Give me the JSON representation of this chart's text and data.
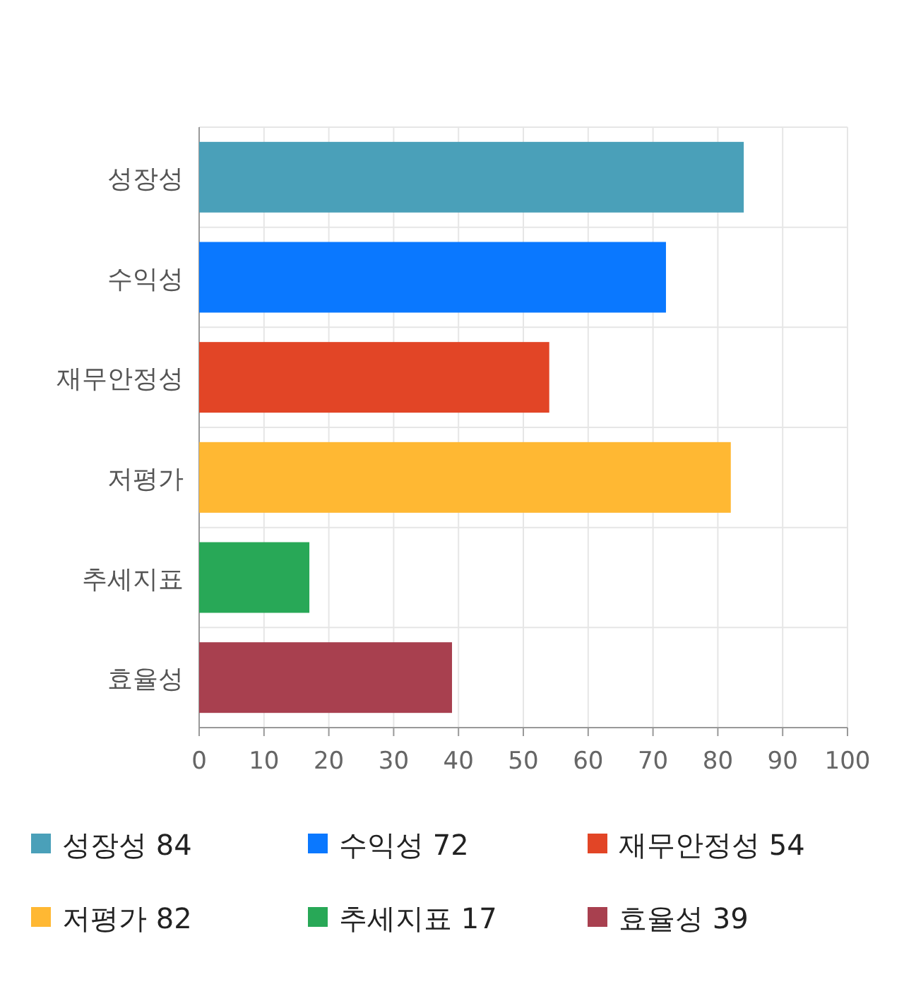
{
  "chart_data": {
    "type": "bar",
    "orientation": "horizontal",
    "stacked": true,
    "categories": [
      "성장성",
      "수익성",
      "재무안정성",
      "저평가",
      "추세지표",
      "효율성"
    ],
    "series": [
      {
        "name": "성장성 84",
        "color": "#4aa0b9",
        "values": [
          84,
          null,
          null,
          null,
          null,
          null
        ]
      },
      {
        "name": "수익성 72",
        "color": "#0a78ff",
        "values": [
          null,
          72,
          null,
          null,
          null,
          null
        ]
      },
      {
        "name": "재무안정성 54",
        "color": "#e24526",
        "values": [
          null,
          null,
          54,
          null,
          null,
          null
        ]
      },
      {
        "name": "저평가 82",
        "color": "#ffb833",
        "values": [
          null,
          null,
          null,
          82,
          null,
          null
        ]
      },
      {
        "name": "추세지표 17",
        "color": "#28a857",
        "values": [
          null,
          null,
          null,
          null,
          17,
          null
        ]
      },
      {
        "name": "효율성 39",
        "color": "#a8404f",
        "values": [
          null,
          null,
          null,
          null,
          null,
          39
        ]
      }
    ],
    "xlim": [
      0,
      100
    ],
    "xticks": [
      0,
      10,
      20,
      30,
      40,
      50,
      60,
      70,
      80,
      90,
      100
    ],
    "grid": true,
    "legend": "bottom"
  }
}
